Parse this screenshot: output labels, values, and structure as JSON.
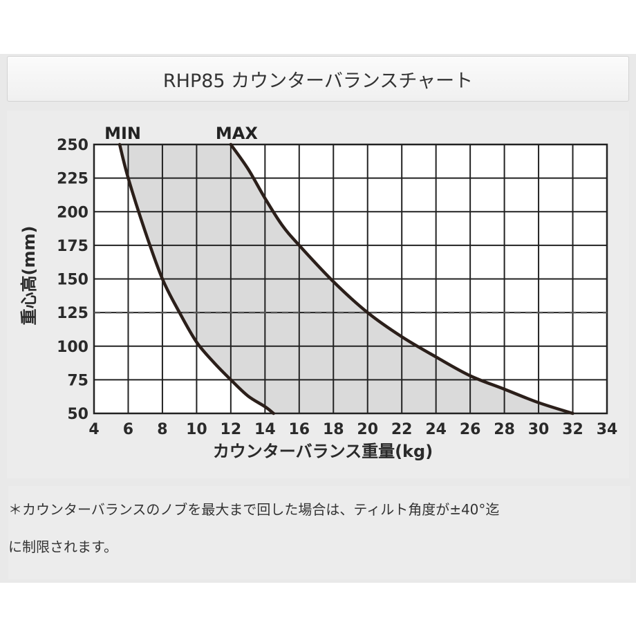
{
  "header": {
    "title": "RHP85 カウンターバランスチャート"
  },
  "note": {
    "line1": "＊カウンターバランスのノブを最大まで回した場合は、ティルト角度が±40°迄",
    "line2": "に制限されます。"
  },
  "chart_data": {
    "type": "line",
    "title": "RHP85 カウンターバランスチャート",
    "xlabel": "カウンターバランス重量(kg)",
    "ylabel": "重心高(mm)",
    "xlim": [
      4,
      34
    ],
    "ylim": [
      50,
      250
    ],
    "xticks": [
      "4",
      "6",
      "8",
      "10",
      "12",
      "14",
      "16",
      "18",
      "20",
      "22",
      "24",
      "26",
      "28",
      "30",
      "32",
      "34"
    ],
    "yticks": [
      "50",
      "75",
      "100",
      "125",
      "150",
      "175",
      "200",
      "225",
      "250"
    ],
    "grid": true,
    "reference_line": {
      "y": 125,
      "style": "dashed"
    },
    "fill_between": "MIN-MAX",
    "series": [
      {
        "name": "MIN",
        "points": [
          [
            5.5,
            250
          ],
          [
            6.0,
            225
          ],
          [
            7.0,
            185
          ],
          [
            8.0,
            150
          ],
          [
            9.0,
            125
          ],
          [
            10.0,
            103
          ],
          [
            11.0,
            88
          ],
          [
            12.0,
            75
          ],
          [
            13.0,
            63
          ],
          [
            14.0,
            55
          ],
          [
            14.5,
            50
          ]
        ]
      },
      {
        "name": "MAX",
        "points": [
          [
            12.0,
            250
          ],
          [
            13.0,
            232
          ],
          [
            14.0,
            210
          ],
          [
            15.0,
            190
          ],
          [
            16.0,
            175
          ],
          [
            18.0,
            148
          ],
          [
            20.0,
            125
          ],
          [
            22.0,
            107
          ],
          [
            24.0,
            92
          ],
          [
            26.0,
            78
          ],
          [
            28.0,
            68
          ],
          [
            30.0,
            58
          ],
          [
            32.0,
            50
          ]
        ]
      }
    ]
  }
}
